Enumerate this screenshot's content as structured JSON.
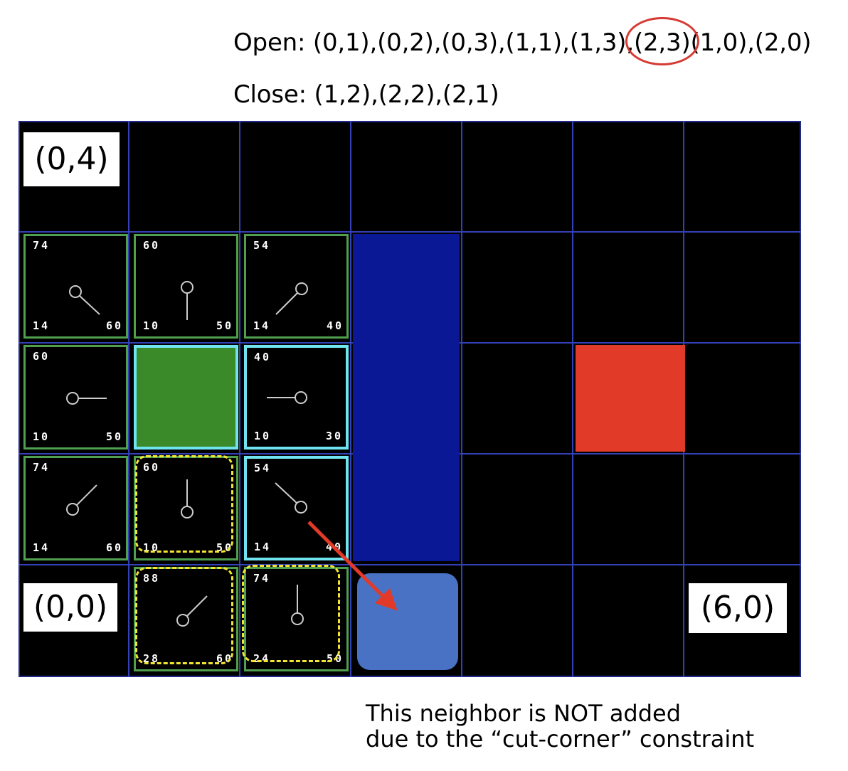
{
  "lists": {
    "open_label": "Open:",
    "open_before": "(0,1),(0,2),(0,3),(1,1),(1,3),",
    "open_highlight": "(2,3)",
    "open_after": "(1,0),(2,0)",
    "close_label": "Close:",
    "close_items": "(1,2),(2,2),(2,1)"
  },
  "coords": {
    "top_left": "(0,4)",
    "bottom_left": "(0,0)",
    "bottom_right": "(6,0)"
  },
  "nodes": [
    {
      "f": "74",
      "g": "14",
      "h": "60",
      "pointer": "right-down"
    },
    {
      "f": "60",
      "g": "10",
      "h": "50",
      "pointer": "down"
    },
    {
      "f": "54",
      "g": "14",
      "h": "40",
      "pointer": "left-down"
    },
    {
      "f": "60",
      "g": "10",
      "h": "50",
      "pointer": "right"
    },
    {
      "f": "40",
      "g": "10",
      "h": "30",
      "pointer": "left"
    },
    {
      "f": "74",
      "g": "14",
      "h": "60",
      "pointer": "right-up"
    },
    {
      "f": "60",
      "g": "10",
      "h": "50",
      "pointer": "up"
    },
    {
      "f": "54",
      "g": "14",
      "h": "40",
      "pointer": "left-up"
    },
    {
      "f": "88",
      "g": "28",
      "h": "60",
      "pointer": "right-up"
    },
    {
      "f": "74",
      "g": "24",
      "h": "50",
      "pointer": "up"
    }
  ],
  "colors": {
    "start": "#3a8a2a",
    "goal": "#e23a28",
    "wall": "#0b1896",
    "blocked": "#4a72c4",
    "open_border": "#4f9f4f",
    "closed_border": "#6fe3f0",
    "highlight": "#f4e532",
    "arrow": "#e23a28"
  },
  "note": {
    "line1": "This neighbor is NOT added",
    "line2": "due to the “cut-corner” constraint"
  }
}
